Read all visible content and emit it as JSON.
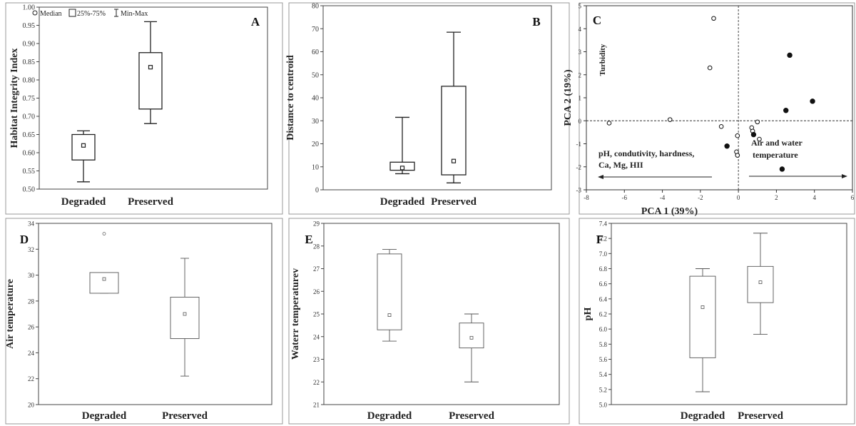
{
  "legend": {
    "median_label": "Median",
    "box_label": "25%-75%",
    "whisker_label": "Min-Max"
  },
  "chart_data": [
    {
      "panel": "A",
      "type": "box",
      "ylabel": "Habitat Integrity Index",
      "ylim": [
        0.5,
        1.0
      ],
      "yticks": [
        "0.50",
        "0.55",
        "0.60",
        "0.65",
        "0.70",
        "0.75",
        "0.80",
        "0.85",
        "0.90",
        "0.95",
        "1.00"
      ],
      "categories": [
        "Degraded",
        "Preserved"
      ],
      "boxes": [
        {
          "min": 0.52,
          "q1": 0.58,
          "median": 0.62,
          "q3": 0.65,
          "max": 0.66
        },
        {
          "min": 0.68,
          "q1": 0.72,
          "median": 0.835,
          "q3": 0.875,
          "max": 0.96
        }
      ],
      "outliers": []
    },
    {
      "panel": "B",
      "type": "box",
      "ylabel": "Distance to centroid",
      "ylim": [
        0,
        80
      ],
      "yticks": [
        "0",
        "10",
        "20",
        "30",
        "40",
        "50",
        "60",
        "70",
        "80"
      ],
      "categories": [
        "Degraded",
        "Preserved"
      ],
      "boxes": [
        {
          "min": 7,
          "q1": 8.5,
          "median": 9.5,
          "q3": 12,
          "max": 31.5
        },
        {
          "min": 3,
          "q1": 6.5,
          "median": 12.5,
          "q3": 45,
          "max": 68.5
        }
      ],
      "outliers": []
    },
    {
      "panel": "C",
      "type": "scatter",
      "xlabel": "PCA 1 (39%)",
      "ylabel": "PCA 2 (19%)",
      "xlim": [
        -8,
        6
      ],
      "ylim": [
        -3,
        5
      ],
      "xticks": [
        "-8",
        "-6",
        "-4",
        "-2",
        "0",
        "2",
        "4",
        "6"
      ],
      "yticks": [
        "-3",
        "-2",
        "-1",
        "0",
        "1",
        "2",
        "3",
        "4",
        "5"
      ],
      "annotations": {
        "turbidity": "Turbidity",
        "left_line1": "pH, condutivity,  hardness,",
        "left_line2": "Ca, Mg, HII",
        "right_line1": "Air and water",
        "right_line2": "temperature"
      },
      "series": [
        {
          "marker": "open",
          "points": [
            [
              -6.8,
              -0.1
            ],
            [
              -3.6,
              0.05
            ],
            [
              -1.3,
              4.45
            ],
            [
              -1.5,
              2.3
            ],
            [
              -0.9,
              -0.25
            ],
            [
              -0.05,
              -0.65
            ],
            [
              -0.1,
              -1.35
            ],
            [
              -0.05,
              -1.5
            ],
            [
              0.7,
              -0.3
            ],
            [
              0.75,
              -0.45
            ],
            [
              1.0,
              -0.05
            ],
            [
              1.1,
              -0.8
            ]
          ]
        },
        {
          "marker": "filled",
          "points": [
            [
              2.7,
              2.85
            ],
            [
              3.9,
              0.85
            ],
            [
              2.5,
              0.45
            ],
            [
              0.8,
              -0.6
            ],
            [
              -0.6,
              -1.1
            ],
            [
              2.3,
              -2.1
            ]
          ]
        }
      ]
    },
    {
      "panel": "D",
      "type": "box",
      "ylabel": "Air temperature",
      "ylim": [
        20,
        34
      ],
      "yticks": [
        "20",
        "22",
        "24",
        "26",
        "28",
        "30",
        "32",
        "34"
      ],
      "categories": [
        "Degraded",
        "Preserved"
      ],
      "boxes": [
        {
          "min": 28.6,
          "q1": 28.6,
          "median": 29.7,
          "q3": 30.2,
          "max": 30.2
        },
        {
          "min": 22.2,
          "q1": 25.1,
          "median": 27.0,
          "q3": 28.3,
          "max": 31.3
        }
      ],
      "outliers": [
        {
          "category": 0,
          "value": 33.2
        }
      ]
    },
    {
      "panel": "E",
      "type": "box",
      "ylabel": "Waterr temperaturev",
      "ylim": [
        21,
        29
      ],
      "yticks": [
        "21",
        "22",
        "23",
        "24",
        "25",
        "26",
        "27",
        "28",
        "29"
      ],
      "categories": [
        "Degraded",
        "Preserved"
      ],
      "boxes": [
        {
          "min": 23.8,
          "q1": 24.3,
          "median": 24.95,
          "q3": 27.65,
          "max": 27.85
        },
        {
          "min": 22.0,
          "q1": 23.5,
          "median": 23.95,
          "q3": 24.6,
          "max": 25.0
        }
      ],
      "outliers": []
    },
    {
      "panel": "F",
      "type": "box",
      "ylabel": "pH",
      "ylim": [
        5.0,
        7.4
      ],
      "yticks": [
        "5.0",
        "5.2",
        "5.4",
        "5.6",
        "5.8",
        "6.0",
        "6.2",
        "6.4",
        "6.6",
        "6.8",
        "7.0",
        "7.2",
        "7.4"
      ],
      "categories": [
        "Degraded",
        "Preserved"
      ],
      "boxes": [
        {
          "min": 5.17,
          "q1": 5.62,
          "median": 6.29,
          "q3": 6.7,
          "max": 6.8
        },
        {
          "min": 5.93,
          "q1": 6.35,
          "median": 6.62,
          "q3": 6.83,
          "max": 7.27
        }
      ],
      "outliers": []
    }
  ]
}
